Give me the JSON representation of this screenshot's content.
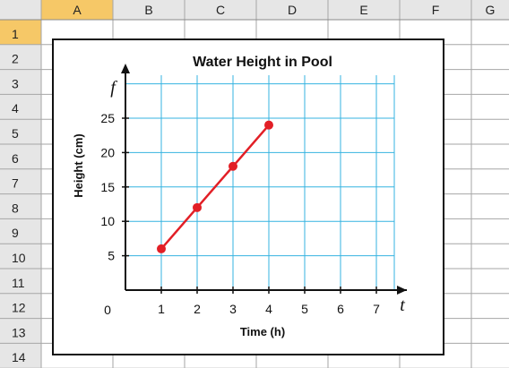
{
  "spreadsheet": {
    "columns": [
      "A",
      "B",
      "C",
      "D",
      "E",
      "F",
      "G"
    ],
    "rows": [
      "1",
      "2",
      "3",
      "4",
      "5",
      "6",
      "7",
      "8",
      "9",
      "10",
      "11",
      "12",
      "13",
      "14"
    ],
    "selected_column": "A",
    "selected_row": "1"
  },
  "colors": {
    "header_bg": "#e6e6e6",
    "header_selected_bg": "#f6c867",
    "grid_line": "#a6a6a6",
    "chart_grid": "#35b3e0",
    "series": "#e21f26"
  },
  "chart_data": {
    "type": "line",
    "title": "Water Height in Pool",
    "xlabel": "Time (h)",
    "ylabel": "Height (cm)",
    "x_var": "t",
    "y_var": "f",
    "origin_label": "0",
    "x_ticks": [
      1,
      2,
      3,
      4,
      5,
      6,
      7
    ],
    "y_ticks": [
      5,
      10,
      15,
      20,
      25
    ],
    "xlim": [
      0,
      7.5
    ],
    "ylim": [
      0,
      25
    ],
    "grid": true,
    "series": [
      {
        "x": [
          1,
          2,
          3,
          4
        ],
        "values": [
          6,
          12,
          18,
          24
        ]
      }
    ]
  }
}
